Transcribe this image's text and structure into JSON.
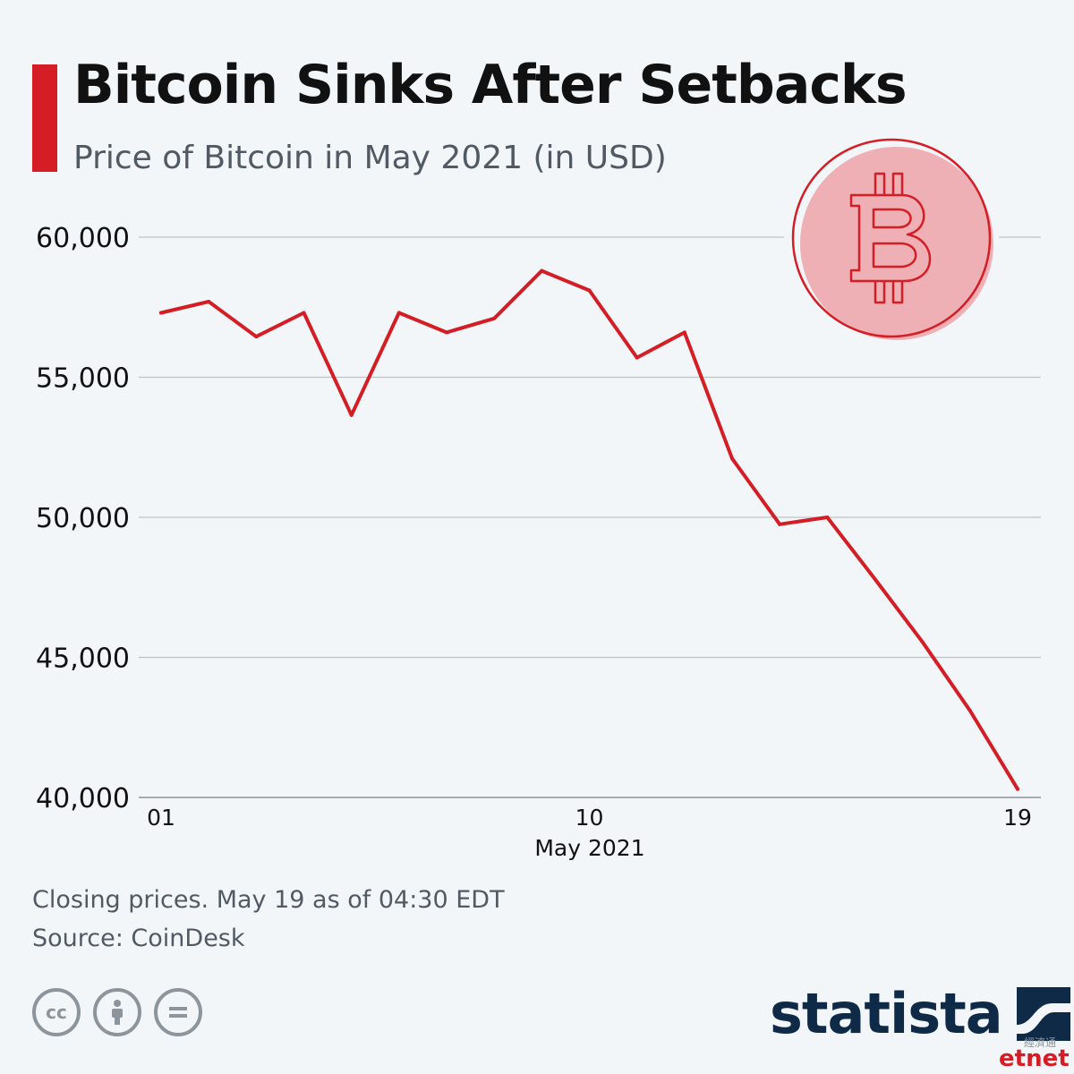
{
  "header": {
    "title": "Bitcoin Sinks After Setbacks",
    "subtitle": "Price of Bitcoin in May 2021 (in USD)"
  },
  "chart_data": {
    "type": "line",
    "title": "Bitcoin Sinks After Setbacks",
    "subtitle": "Price of Bitcoin in May 2021 (in USD)",
    "xlabel": "May 2021",
    "ylabel": "",
    "x": [
      "2021-05-01",
      "2021-05-02",
      "2021-05-03",
      "2021-05-04",
      "2021-05-05",
      "2021-05-06",
      "2021-05-07",
      "2021-05-08",
      "2021-05-09",
      "2021-05-10",
      "2021-05-11",
      "2021-05-12",
      "2021-05-13",
      "2021-05-14",
      "2021-05-15",
      "2021-05-16",
      "2021-05-17",
      "2021-05-18",
      "2021-05-19"
    ],
    "series": [
      {
        "values": [
          57300,
          57700,
          56450,
          57300,
          53650,
          57300,
          56600,
          57100,
          58800,
          58100,
          55700,
          56600,
          52100,
          49750,
          50000,
          47800,
          45550,
          43100,
          40300
        ]
      }
    ],
    "ylim": [
      40000,
      60000
    ],
    "y_ticks": [
      60000,
      55000,
      50000,
      45000,
      40000
    ],
    "y_tick_labels": [
      "60,000",
      "55,000",
      "50,000",
      "45,000",
      "40,000"
    ],
    "x_tick_labels": [
      "01",
      "10",
      "19"
    ],
    "x_tick_indices": [
      0,
      9,
      18
    ],
    "grid": true,
    "legend": "none",
    "line_color": "#d41d24"
  },
  "footer": {
    "note": "Closing prices. May 19 as of 04:30 EDT",
    "source": "Source: CoinDesk",
    "brand": "statista",
    "watermark": "etnet",
    "watermark_zh": "經濟通",
    "license_icons": [
      "cc-icon",
      "attribution-icon",
      "no-derivatives-icon"
    ]
  },
  "colors": {
    "accent": "#d41d24",
    "brand": "#0f2a47",
    "coin_fill": "#eeb0b5"
  }
}
